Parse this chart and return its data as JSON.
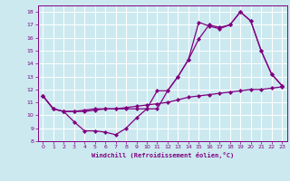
{
  "xlabel": "Windchill (Refroidissement éolien,°C)",
  "background_color": "#cce9f0",
  "grid_color": "#ffffff",
  "line_color": "#800080",
  "xlim": [
    -0.5,
    23.5
  ],
  "ylim": [
    8,
    18.5
  ],
  "xticks": [
    0,
    1,
    2,
    3,
    4,
    5,
    6,
    7,
    8,
    9,
    10,
    11,
    12,
    13,
    14,
    15,
    16,
    17,
    18,
    19,
    20,
    21,
    22,
    23
  ],
  "yticks": [
    8,
    9,
    10,
    11,
    12,
    13,
    14,
    15,
    16,
    17,
    18
  ],
  "series1_x": [
    0,
    1,
    2,
    3,
    4,
    5,
    6,
    7,
    8,
    9,
    10,
    11,
    12,
    13,
    14,
    15,
    16,
    17,
    18,
    19,
    20,
    21,
    22,
    23
  ],
  "series1_y": [
    11.5,
    10.5,
    10.3,
    9.5,
    8.8,
    8.8,
    8.7,
    8.5,
    9.0,
    9.8,
    10.5,
    11.9,
    11.9,
    13.0,
    14.3,
    17.2,
    16.9,
    16.7,
    17.0,
    18.0,
    17.3,
    15.0,
    13.2,
    12.3
  ],
  "series2_x": [
    0,
    1,
    2,
    3,
    4,
    5,
    6,
    7,
    8,
    9,
    10,
    11,
    12,
    13,
    14,
    15,
    16,
    17,
    18,
    19,
    20,
    21,
    22,
    23
  ],
  "series2_y": [
    11.5,
    10.5,
    10.3,
    10.3,
    10.4,
    10.5,
    10.5,
    10.5,
    10.5,
    10.5,
    10.5,
    10.5,
    11.9,
    13.0,
    14.3,
    15.9,
    17.0,
    16.8,
    17.0,
    18.0,
    17.3,
    15.0,
    13.2,
    12.3
  ],
  "series3_x": [
    0,
    1,
    2,
    3,
    4,
    5,
    6,
    7,
    8,
    9,
    10,
    11,
    12,
    13,
    14,
    15,
    16,
    17,
    18,
    19,
    20,
    21,
    22,
    23
  ],
  "series3_y": [
    11.5,
    10.5,
    10.3,
    10.3,
    10.3,
    10.4,
    10.5,
    10.5,
    10.6,
    10.7,
    10.8,
    10.9,
    11.0,
    11.2,
    11.4,
    11.5,
    11.6,
    11.7,
    11.8,
    11.9,
    12.0,
    12.0,
    12.1,
    12.2
  ]
}
